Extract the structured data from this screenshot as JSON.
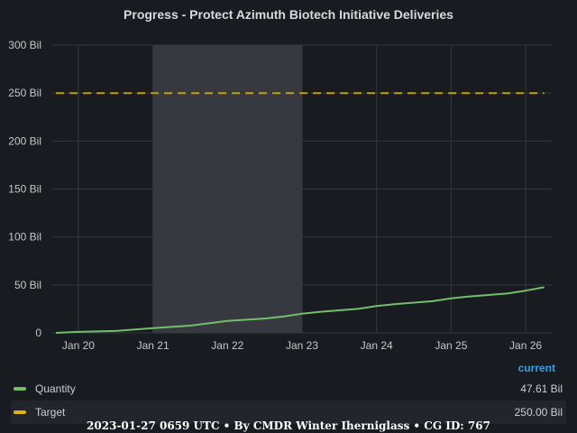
{
  "title": "Progress - Protect Azimuth Biotech Initiative Deliveries",
  "colors": {
    "quantity": "#73bf69",
    "target": "#e0b400",
    "highlight": "#3a3d42",
    "grid": "#35383d",
    "accent": "#33a2e5"
  },
  "legend": {
    "header": "current",
    "items": [
      {
        "name": "Quantity",
        "value": "47.61 Bil"
      },
      {
        "name": "Target",
        "value": "250.00 Bil"
      }
    ]
  },
  "footer": "2023-01-27 0659 UTC • By CMDR Winter Iherniglass • CG ID: 767",
  "chart_data": {
    "type": "line",
    "title": "Progress - Protect Azimuth Biotech Initiative Deliveries",
    "xlabel": "",
    "ylabel": "",
    "xlim": [
      19.65,
      26.35
    ],
    "ylim": [
      0,
      300
    ],
    "y_ticks": [
      0,
      50,
      100,
      150,
      200,
      250,
      300
    ],
    "y_tick_labels": [
      "0",
      "50 Bil",
      "100 Bil",
      "150 Bil",
      "200 Bil",
      "250 Bil",
      "300 Bil"
    ],
    "x_ticks": [
      20,
      21,
      22,
      23,
      24,
      25,
      26
    ],
    "x_tick_labels": [
      "Jan 20",
      "Jan 21",
      "Jan 22",
      "Jan 23",
      "Jan 24",
      "Jan 25",
      "Jan 26"
    ],
    "highlight_range": [
      21,
      23
    ],
    "grid": true,
    "legend_position": "bottom",
    "series": [
      {
        "name": "Quantity",
        "x": [
          19.7,
          20.0,
          20.5,
          21.0,
          21.5,
          21.75,
          22.0,
          22.5,
          22.75,
          23.0,
          23.25,
          23.75,
          24.0,
          24.25,
          24.75,
          25.0,
          25.25,
          25.75,
          26.0,
          26.25
        ],
        "values": [
          0,
          1,
          2,
          5,
          7.5,
          10,
          12.5,
          15,
          17,
          20,
          22,
          25,
          28,
          30,
          33,
          36,
          38,
          41,
          44,
          47.61
        ]
      },
      {
        "name": "Target",
        "x": [
          19.7,
          26.25
        ],
        "values": [
          250,
          250
        ],
        "dashed": true
      }
    ]
  }
}
